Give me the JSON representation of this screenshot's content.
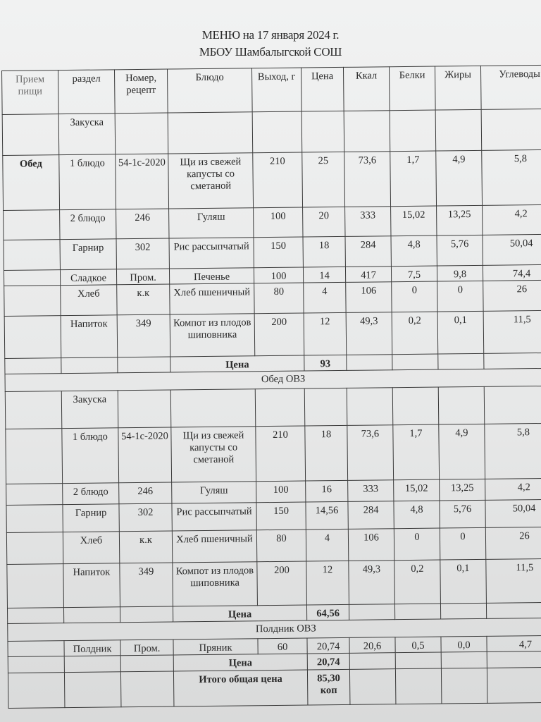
{
  "title": {
    "line1": "МЕНЮ на 17 января 2024  г.",
    "line2": "МБОУ Шамбалыгской СОШ"
  },
  "table": {
    "headers": [
      "Прием пищи",
      "раздел",
      "Номер, рецепт",
      "Блюдо",
      "Выход, г",
      "Цена",
      "Ккал",
      "Белки",
      "Жиры",
      "Углеводы"
    ],
    "rows": [
      {
        "type": "row",
        "cells": [
          "",
          "Закуска",
          "",
          "",
          "",
          "",
          "",
          "",
          "",
          ""
        ]
      },
      {
        "type": "row",
        "cells": [
          "Обед",
          "1 блюдо",
          "54-1с-2020",
          "Щи из свежей капусты со сметаной",
          "210",
          "25",
          "73,6",
          "1,7",
          "4,9",
          "5,8"
        ]
      },
      {
        "type": "row",
        "cells": [
          "",
          "2 блюдо",
          "246",
          "Гуляш",
          "100",
          "20",
          "333",
          "15,02",
          "13,25",
          "4,2"
        ]
      },
      {
        "type": "row",
        "cells": [
          "",
          "Гарнир",
          "302",
          "Рис рассыпчатый",
          "150",
          "18",
          "284",
          "4,8",
          "5,76",
          "50,04"
        ]
      },
      {
        "type": "row",
        "cells": [
          "",
          "Сладкое",
          "Пром.",
          "Печенье",
          "100",
          "14",
          "417",
          "7,5",
          "9,8",
          "74,4"
        ]
      },
      {
        "type": "row",
        "cells": [
          "",
          "Хлеб",
          "к.к",
          "Хлеб пшеничный",
          "80",
          "4",
          "106",
          "0",
          "0",
          "26"
        ]
      },
      {
        "type": "row",
        "cells": [
          "",
          "Напиток",
          "349",
          "Компот из плодов шиповника",
          "200",
          "12",
          "49,3",
          "0,2",
          "0,1",
          "11,5"
        ]
      },
      {
        "type": "total",
        "label": "Цена",
        "value": "93"
      },
      {
        "type": "section",
        "label": "Обед ОВЗ"
      },
      {
        "type": "row",
        "cells": [
          "",
          "Закуска",
          "",
          "",
          "",
          "",
          "",
          "",
          "",
          ""
        ]
      },
      {
        "type": "row",
        "cells": [
          "",
          "1 блюдо",
          "54-1с-2020",
          "Щи из свежей капусты со сметаной",
          "210",
          "18",
          "73,6",
          "1,7",
          "4,9",
          "5,8"
        ]
      },
      {
        "type": "row",
        "cells": [
          "",
          "2 блюдо",
          "246",
          "Гуляш",
          "100",
          "16",
          "333",
          "15,02",
          "13,25",
          "4,2"
        ]
      },
      {
        "type": "row",
        "cells": [
          "",
          "Гарнир",
          "302",
          "Рис рассыпчатый",
          "150",
          "14,56",
          "284",
          "4,8",
          "5,76",
          "50,04"
        ]
      },
      {
        "type": "row",
        "cells": [
          "",
          "Хлеб",
          "к.к",
          "Хлеб пшеничный",
          "80",
          "4",
          "106",
          "0",
          "0",
          "26"
        ]
      },
      {
        "type": "row",
        "cells": [
          "",
          "Напиток",
          "349",
          "Компот из плодов шиповника",
          "200",
          "12",
          "49,3",
          "0,2",
          "0,1",
          "11,5"
        ]
      },
      {
        "type": "total",
        "label": "Цена",
        "value": "64,56"
      },
      {
        "type": "section",
        "label": "Полдник ОВЗ"
      },
      {
        "type": "row",
        "cells": [
          "",
          "Полдник",
          "Пром.",
          "Пряник",
          "60",
          "20,74",
          "20,6",
          "0,5",
          "0,0",
          "4,7"
        ]
      },
      {
        "type": "total",
        "label": "Цена",
        "value": "20,74"
      },
      {
        "type": "total",
        "label": "Итого общая цена",
        "value": "85,30 коп"
      }
    ]
  }
}
